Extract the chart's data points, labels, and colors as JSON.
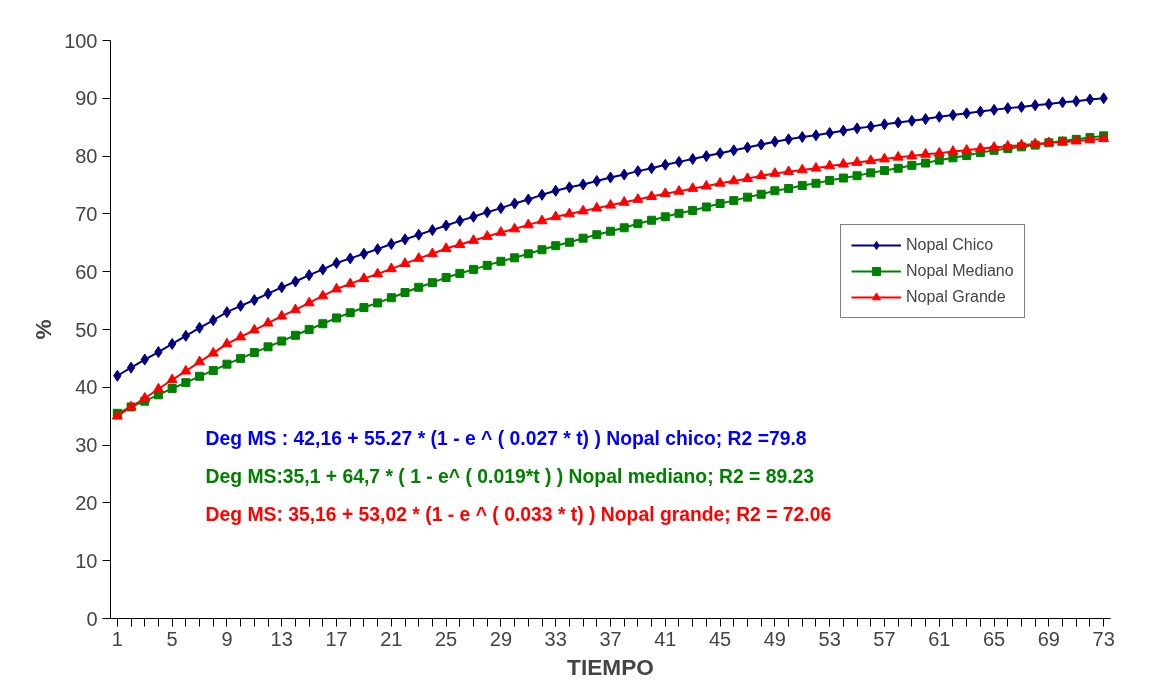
{
  "chart_data": {
    "type": "line",
    "xlabel": "TIEMPO",
    "ylabel": "%",
    "categories": [
      "1",
      null,
      null,
      null,
      "5",
      null,
      null,
      null,
      "9",
      null,
      null,
      null,
      "13",
      null,
      null,
      null,
      "17",
      null,
      null,
      null,
      "21",
      null,
      null,
      null,
      "25",
      null,
      null,
      null,
      "29",
      null,
      null,
      null,
      "33",
      null,
      null,
      null,
      "37",
      null,
      null,
      null,
      "41",
      null,
      null,
      null,
      "45",
      null,
      null,
      null,
      "49",
      null,
      null,
      null,
      "53",
      null,
      null,
      null,
      "57",
      null,
      null,
      null,
      "61",
      null,
      null,
      null,
      "65",
      null,
      null,
      null,
      "69",
      null,
      null,
      null,
      "73"
    ],
    "ylim": [
      0,
      100
    ],
    "yticks": [
      0,
      10,
      20,
      30,
      40,
      50,
      60,
      70,
      80,
      90,
      100
    ],
    "grid": false,
    "legend": "right",
    "series": [
      {
        "name": "Nopal Chico",
        "color": "#000080",
        "marker": "diamond",
        "values": [
          42,
          43.4,
          44.8,
          46.1,
          47.5,
          48.9,
          50.3,
          51.6,
          53,
          54.1,
          55.1,
          56.2,
          57.3,
          58.3,
          59.4,
          60.4,
          61.5,
          62.3,
          63.1,
          63.9,
          64.8,
          65.6,
          66.4,
          67.2,
          68,
          68.8,
          69.5,
          70.3,
          71,
          71.8,
          72.5,
          73.3,
          74,
          74.6,
          75.1,
          75.7,
          76.3,
          76.8,
          77.4,
          77.9,
          78.5,
          79,
          79.5,
          80,
          80.5,
          81,
          81.5,
          82,
          82.5,
          82.9,
          83.3,
          83.6,
          84,
          84.4,
          84.8,
          85.1,
          85.5,
          85.8,
          86.1,
          86.4,
          86.8,
          87.1,
          87.4,
          87.7,
          88,
          88.3,
          88.5,
          88.8,
          89,
          89.3,
          89.5,
          89.8,
          90
        ]
      },
      {
        "name": "Nopal Mediano",
        "color": "#008000",
        "marker": "square",
        "values": [
          35.5,
          36.6,
          37.6,
          38.7,
          39.8,
          40.8,
          41.9,
          42.9,
          44,
          45,
          46,
          47,
          48,
          49,
          50,
          51,
          52,
          52.9,
          53.8,
          54.6,
          55.5,
          56.4,
          57.3,
          58.1,
          59,
          59.7,
          60.4,
          61.1,
          61.8,
          62.4,
          63.1,
          63.8,
          64.5,
          65.1,
          65.8,
          66.4,
          67,
          67.6,
          68.3,
          68.9,
          69.5,
          70.1,
          70.6,
          71.2,
          71.8,
          72.3,
          72.9,
          73.4,
          74,
          74.4,
          74.9,
          75.3,
          75.8,
          76.2,
          76.6,
          77.1,
          77.5,
          77.9,
          78.4,
          78.8,
          79.3,
          79.7,
          80.1,
          80.6,
          81,
          81.3,
          81.6,
          81.9,
          82.3,
          82.6,
          82.9,
          83.2,
          83.5
        ]
      },
      {
        "name": "Nopal Grande",
        "color": "#ff0000",
        "marker": "triangle",
        "values": [
          35,
          36.6,
          38.1,
          39.7,
          41.3,
          42.8,
          44.4,
          45.9,
          47.5,
          48.7,
          49.9,
          51.1,
          52.3,
          53.4,
          54.6,
          55.8,
          57,
          57.9,
          58.8,
          59.6,
          60.5,
          61.4,
          62.3,
          63.1,
          64,
          64.7,
          65.4,
          66.1,
          66.8,
          67.4,
          68.1,
          68.8,
          69.5,
          70,
          70.5,
          71,
          71.5,
          72,
          72.5,
          73,
          73.5,
          73.9,
          74.4,
          74.8,
          75.3,
          75.7,
          76.1,
          76.6,
          77,
          77.3,
          77.6,
          77.9,
          78.3,
          78.6,
          78.9,
          79.2,
          79.5,
          79.8,
          80,
          80.3,
          80.5,
          80.8,
          81,
          81.3,
          81.5,
          81.7,
          81.9,
          82.1,
          82.3,
          82.4,
          82.6,
          82.8,
          83
        ]
      }
    ],
    "annotations": [
      "Deg MS : 42,16 + 55.27 * (1 - e ^ ( 0.027 * t) ) Nopal chico;  R2 =79.8",
      "Deg MS:35,1 + 64,7 * ( 1 - e^ ( 0.019*t ) ) Nopal mediano;  R2 = 89.23",
      "Deg MS: 35,16 + 53,02 * (1 - e ^ ( 0.033 * t) ) Nopal grande;  R2 = 72.06"
    ]
  }
}
